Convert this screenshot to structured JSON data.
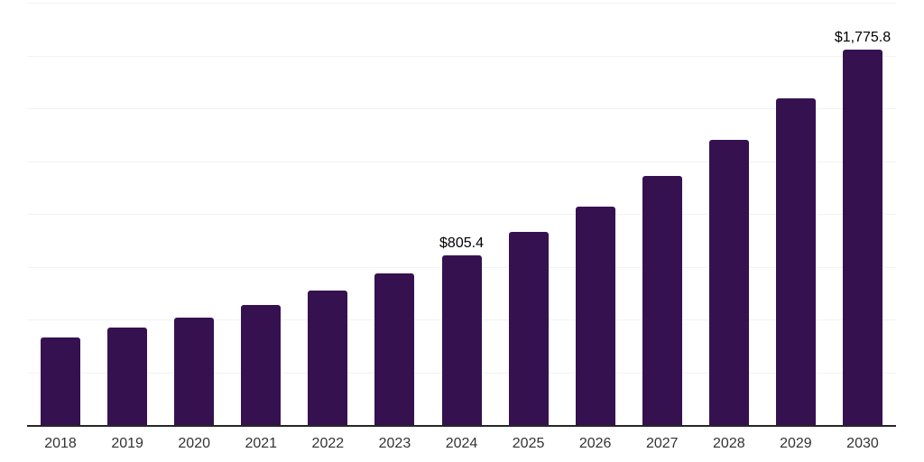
{
  "chart_data": {
    "type": "bar",
    "title": "",
    "xlabel": "",
    "ylabel": "",
    "categories": [
      "2018",
      "2019",
      "2020",
      "2021",
      "2022",
      "2023",
      "2024",
      "2025",
      "2026",
      "2027",
      "2028",
      "2029",
      "2030"
    ],
    "values": [
      413,
      460,
      510,
      570,
      638,
      719,
      805.4,
      916,
      1033,
      1180,
      1351,
      1547,
      1775.8
    ],
    "value_labels": {
      "2024": "$805.4",
      "2030": "$1,775.8"
    },
    "ylim": [
      0,
      2000
    ],
    "gridline_interval": 250,
    "grid": true,
    "legend": false,
    "colors": {
      "bar": "#361150",
      "axis": "#262626",
      "gridline": "#f2f2f2",
      "tick_label": "#333333",
      "value_label": "#000000",
      "background": "#ffffff"
    }
  }
}
